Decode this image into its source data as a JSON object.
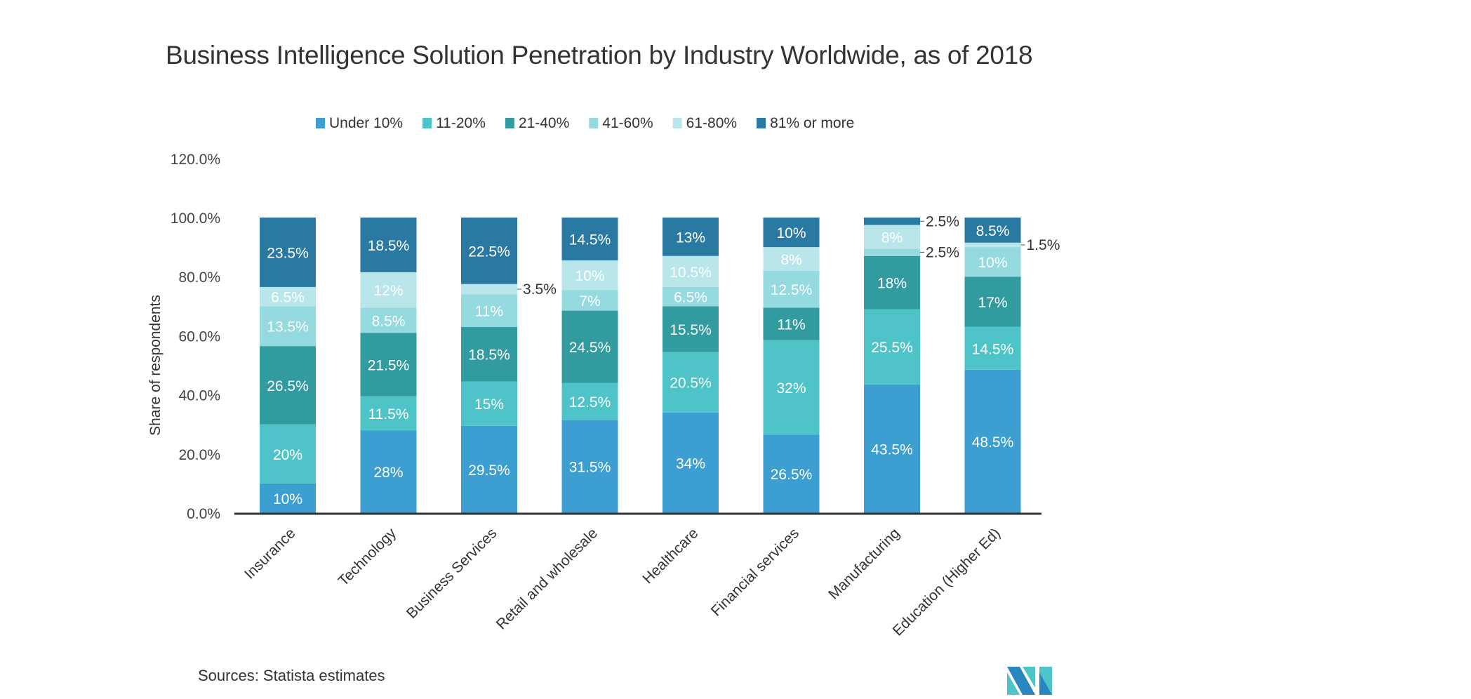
{
  "chart_data": {
    "type": "bar",
    "stacked": true,
    "title": "Business Intelligence Solution Penetration by Industry Worldwide, as of 2018",
    "xlabel": "",
    "ylabel": "Share of respondents",
    "ylim": [
      0,
      120
    ],
    "yticks": [
      "0.0%",
      "20.0%",
      "40.0%",
      "60.0%",
      "80.0%",
      "100.0%",
      "120.0%"
    ],
    "grid": false,
    "legend_position": "top",
    "categories": [
      "Insurance",
      "Technology",
      "Business Services",
      "Retail and wholesale",
      "Healthcare",
      "Financial services",
      "Manufacturing",
      "Education (Higher Ed)"
    ],
    "series": [
      {
        "name": "Under 10%",
        "color": "#3d9fd1",
        "values": [
          10,
          28,
          29.5,
          31.5,
          34,
          26.5,
          43.5,
          48.5
        ]
      },
      {
        "name": "11-20%",
        "color": "#4fc4c8",
        "values": [
          20,
          11.5,
          15,
          12.5,
          20.5,
          32,
          25.5,
          14.5
        ]
      },
      {
        "name": "21-40%",
        "color": "#329b9f",
        "values": [
          26.5,
          21.5,
          18.5,
          24.5,
          15.5,
          11,
          18,
          17
        ]
      },
      {
        "name": "41-60%",
        "color": "#95dadf",
        "values": [
          13.5,
          8.5,
          11,
          7,
          6.5,
          12.5,
          2.5,
          10
        ]
      },
      {
        "name": "61-80%",
        "color": "#b9e6ea",
        "values": [
          6.5,
          12,
          3.5,
          10,
          10.5,
          8,
          8,
          1.5
        ]
      },
      {
        "name": "81% or more",
        "color": "#2a79a3",
        "values": [
          23.5,
          18.5,
          22.5,
          14.5,
          13,
          10,
          2.5,
          8.5
        ]
      }
    ]
  },
  "source": "Sources: Statista estimates",
  "logo": {
    "text": "MN",
    "colors": [
      "#2a86bf",
      "#4fc4c8"
    ]
  }
}
